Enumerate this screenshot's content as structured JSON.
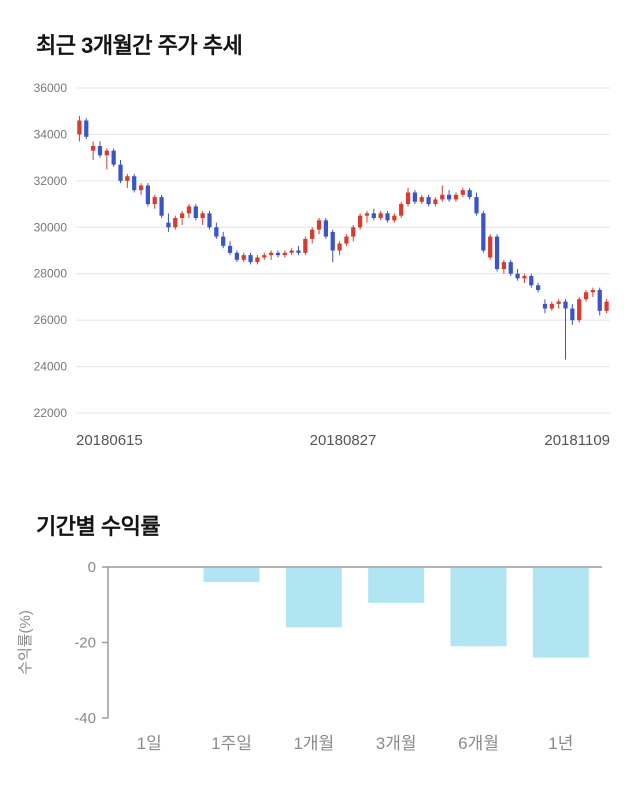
{
  "sections": {
    "price_trend": {
      "title": "최근 3개월간 주가 추세"
    },
    "returns": {
      "title": "기간별 수익률"
    }
  },
  "chart_data": [
    {
      "type": "candlestick",
      "title": "최근 3개월간 주가 추세",
      "ylim": [
        22000,
        36000
      ],
      "y_ticks": [
        22000,
        24000,
        26000,
        28000,
        30000,
        32000,
        34000,
        36000
      ],
      "x_tick_labels": [
        "20180615",
        "20180827",
        "20181109"
      ],
      "grid": true,
      "colors": {
        "up": "#d63c2f",
        "down": "#3a55c5",
        "grid": "#e4e4e4",
        "axis_text": "#777777",
        "x_text": "#555555"
      },
      "candles": [
        [
          34000,
          34800,
          33700,
          34600
        ],
        [
          34600,
          34700,
          33800,
          33900
        ],
        [
          33300,
          33700,
          32900,
          33500
        ],
        [
          33500,
          33700,
          33000,
          33100
        ],
        [
          33100,
          33400,
          32500,
          33300
        ],
        [
          33300,
          33400,
          32600,
          32700
        ],
        [
          32700,
          32900,
          31900,
          32000
        ],
        [
          32000,
          32300,
          31700,
          32200
        ],
        [
          32200,
          32300,
          31500,
          31600
        ],
        [
          31600,
          31900,
          31400,
          31800
        ],
        [
          31800,
          31900,
          30900,
          31000
        ],
        [
          31000,
          31400,
          30800,
          31300
        ],
        [
          31300,
          31400,
          30400,
          30500
        ],
        [
          30200,
          30600,
          29800,
          30000
        ],
        [
          30000,
          30500,
          29900,
          30400
        ],
        [
          30400,
          30700,
          30100,
          30600
        ],
        [
          30600,
          31000,
          30400,
          30900
        ],
        [
          30900,
          31000,
          30300,
          30400
        ],
        [
          30400,
          30700,
          30100,
          30600
        ],
        [
          30600,
          30700,
          29900,
          30000
        ],
        [
          30000,
          30200,
          29500,
          29600
        ],
        [
          29600,
          29800,
          29100,
          29200
        ],
        [
          29200,
          29400,
          28800,
          28900
        ],
        [
          28900,
          29000,
          28500,
          28600
        ],
        [
          28600,
          28900,
          28500,
          28800
        ],
        [
          28800,
          28900,
          28400,
          28500
        ],
        [
          28500,
          28800,
          28400,
          28700
        ],
        [
          28700,
          28900,
          28600,
          28800
        ],
        [
          28800,
          29000,
          28600,
          28900
        ],
        [
          28900,
          29000,
          28700,
          28800
        ],
        [
          28800,
          29000,
          28700,
          28900
        ],
        [
          28900,
          29100,
          28800,
          29000
        ],
        [
          29000,
          29200,
          28800,
          28900
        ],
        [
          28900,
          29600,
          28800,
          29500
        ],
        [
          29500,
          30000,
          29300,
          29900
        ],
        [
          29900,
          30400,
          29700,
          30300
        ],
        [
          30300,
          30400,
          29500,
          29600
        ],
        [
          29800,
          29900,
          28500,
          29000
        ],
        [
          29000,
          29400,
          28800,
          29300
        ],
        [
          29300,
          29700,
          29200,
          29600
        ],
        [
          29600,
          30100,
          29400,
          30000
        ],
        [
          30000,
          30600,
          29900,
          30500
        ],
        [
          30500,
          30700,
          30200,
          30600
        ],
        [
          30600,
          30800,
          30300,
          30400
        ],
        [
          30400,
          30700,
          30300,
          30600
        ],
        [
          30600,
          30700,
          30200,
          30300
        ],
        [
          30300,
          30600,
          30200,
          30500
        ],
        [
          30500,
          31100,
          30400,
          31000
        ],
        [
          31000,
          31700,
          30900,
          31500
        ],
        [
          31500,
          31600,
          31000,
          31100
        ],
        [
          31100,
          31400,
          31000,
          31300
        ],
        [
          31300,
          31400,
          30900,
          31000
        ],
        [
          31000,
          31300,
          30900,
          31200
        ],
        [
          31200,
          31800,
          31100,
          31400
        ],
        [
          31400,
          31600,
          31100,
          31200
        ],
        [
          31200,
          31500,
          31100,
          31400
        ],
        [
          31400,
          31700,
          31300,
          31600
        ],
        [
          31600,
          31700,
          31200,
          31300
        ],
        [
          31300,
          31500,
          30500,
          30600
        ],
        [
          30600,
          30700,
          28900,
          29000
        ],
        [
          28700,
          29700,
          28600,
          29600
        ],
        [
          29600,
          29700,
          28100,
          28200
        ],
        [
          28200,
          28600,
          28000,
          28500
        ],
        [
          28500,
          28600,
          27900,
          28000
        ],
        [
          28000,
          28200,
          27700,
          27800
        ],
        [
          27800,
          28000,
          27600,
          27900
        ],
        [
          27900,
          28000,
          27400,
          27500
        ],
        [
          27500,
          27600,
          27200,
          27300
        ],
        [
          26700,
          26900,
          26300,
          26500
        ],
        [
          26500,
          26800,
          26400,
          26700
        ],
        [
          26700,
          26900,
          26500,
          26800
        ],
        [
          26800,
          26900,
          24300,
          26500
        ],
        [
          26500,
          26700,
          25800,
          26000
        ],
        [
          26000,
          27000,
          25900,
          26900
        ],
        [
          26900,
          27300,
          26800,
          27200
        ],
        [
          27200,
          27400,
          27000,
          27300
        ],
        [
          27300,
          27400,
          26200,
          26400
        ],
        [
          26400,
          26900,
          26300,
          26800
        ]
      ]
    },
    {
      "type": "bar",
      "title": "기간별 수익률",
      "categories": [
        "1일",
        "1주일",
        "1개월",
        "3개월",
        "6개월",
        "1년"
      ],
      "values": [
        0,
        -4,
        -16,
        -9.5,
        -21,
        -24
      ],
      "ylabel": "수익률(%)",
      "ylim": [
        -40,
        0
      ],
      "y_ticks": [
        0,
        -20,
        -40
      ],
      "bar_color": "#b2e5f2",
      "axis_color": "#9a9a9a",
      "text_color": "#8a8a8a",
      "legend": "none",
      "grid": false
    }
  ]
}
